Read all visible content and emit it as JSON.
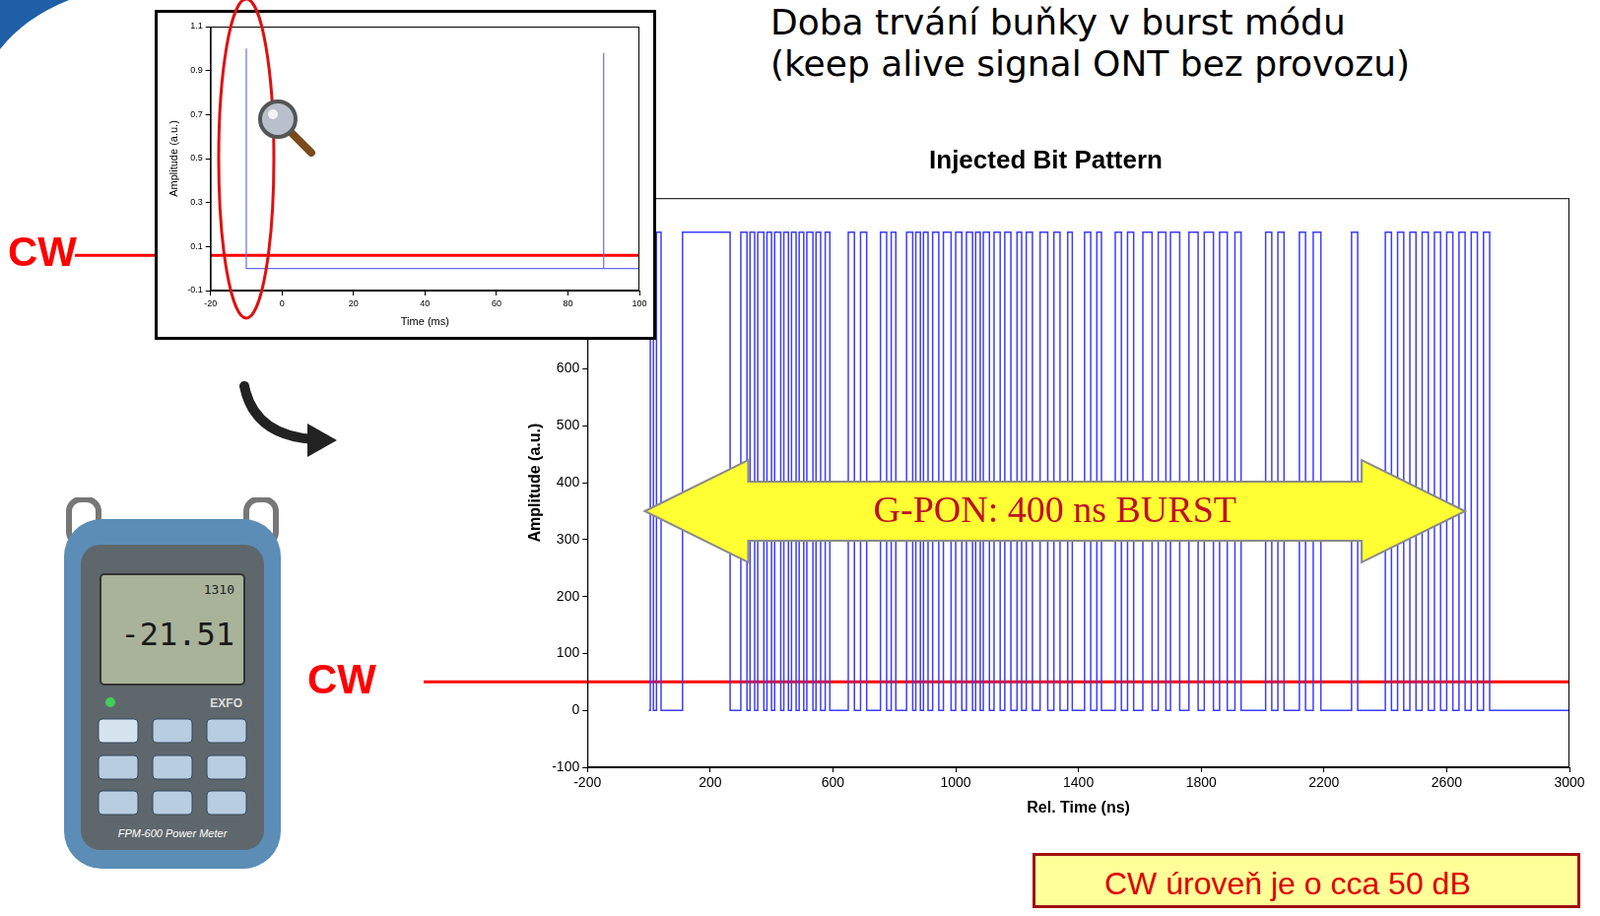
{
  "header": {
    "lines": [
      "Doba trvání buňky v burst módu",
      "(keep alive signal ONT bez provozu)"
    ]
  },
  "chart_data": [
    {
      "type": "line",
      "x_label": "Time (ms)",
      "y_label": "Amplitude (a.u.)",
      "x": [
        -10,
        -10,
        90,
        90,
        90,
        100
      ],
      "values": [
        1.0,
        0,
        0,
        0.98,
        0,
        0
      ],
      "color": "#6a6af0",
      "xlim": [
        -20,
        100
      ],
      "xticks": [
        -20,
        0,
        20,
        40,
        60,
        80,
        100
      ],
      "ylim": [
        -0.1,
        1.1
      ],
      "yticks": [
        -0.1,
        0.1,
        0.3,
        0.5,
        0.7,
        0.9,
        1.1
      ],
      "grid": false,
      "cw_line": {
        "label": "CW",
        "value": 0.06,
        "color": "#ff0000"
      }
    },
    {
      "type": "line",
      "title": "Injected Bit Pattern",
      "x_label": "Rel. Time (ns)",
      "y_label": "Amplitude (a.u.)",
      "x": [
        0,
        5,
        15,
        25,
        40,
        110,
        265,
        300,
        320,
        330,
        345,
        355,
        375,
        385,
        400,
        410,
        430,
        440,
        455,
        465,
        480,
        490,
        505,
        515,
        535,
        545,
        560,
        575,
        590,
        650,
        670,
        690,
        710,
        755,
        775,
        790,
        805,
        840,
        860,
        870,
        885,
        895,
        910,
        925,
        945,
        960,
        985,
        1000,
        1020,
        1035,
        1055,
        1065,
        1080,
        1090,
        1110,
        1125,
        1145,
        1160,
        1180,
        1200,
        1215,
        1230,
        1250,
        1275,
        1300,
        1320,
        1340,
        1365,
        1380,
        1420,
        1440,
        1460,
        1475,
        1520,
        1540,
        1560,
        1580,
        1610,
        1640,
        1660,
        1685,
        1700,
        1730,
        1760,
        1790,
        1810,
        1840,
        1860,
        1885,
        1910,
        1930,
        2010,
        2030,
        2050,
        2070,
        2120,
        2140,
        2165,
        2190,
        2290,
        2310,
        2400,
        2420,
        2440,
        2460,
        2480,
        2500,
        2520,
        2540,
        2560,
        2580,
        2600,
        2620,
        2640,
        2660,
        2680,
        2700,
        2720,
        2740,
        3000
      ],
      "values": [
        0,
        840,
        0,
        840,
        0,
        840,
        0,
        840,
        0,
        840,
        0,
        840,
        0,
        840,
        0,
        840,
        0,
        840,
        0,
        840,
        0,
        840,
        0,
        840,
        0,
        840,
        0,
        840,
        0,
        840,
        0,
        840,
        0,
        840,
        0,
        840,
        0,
        840,
        0,
        840,
        0,
        840,
        0,
        840,
        0,
        840,
        0,
        840,
        0,
        840,
        0,
        840,
        0,
        840,
        0,
        840,
        0,
        840,
        0,
        840,
        0,
        840,
        0,
        840,
        0,
        840,
        0,
        840,
        0,
        840,
        0,
        840,
        0,
        840,
        0,
        840,
        0,
        840,
        0,
        840,
        0,
        840,
        0,
        840,
        0,
        840,
        0,
        840,
        0,
        840,
        0,
        840,
        0,
        840,
        0,
        840,
        0,
        840,
        0,
        840,
        0,
        840,
        0,
        840,
        0,
        840,
        0,
        840,
        0,
        840,
        0,
        840,
        0,
        840,
        0,
        840,
        0,
        840,
        0,
        0
      ],
      "color": "#3d3dff",
      "line_style": "steps",
      "xlim": [
        -200,
        3000
      ],
      "xticks": [
        -200,
        200,
        600,
        1000,
        1400,
        1800,
        2200,
        2600,
        3000
      ],
      "ylim": [
        -100,
        900
      ],
      "yticks": [
        -100,
        0,
        100,
        200,
        300,
        400,
        500,
        600
      ],
      "grid": false,
      "cw_line": {
        "label": "CW",
        "value": 50,
        "color": "#ff0000"
      },
      "annotation": {
        "text": "G-PON: 400 ns BURST",
        "x": [
          -13,
          2660
        ],
        "y": 350
      },
      "note": "CW úroveň je o cca 50 dB"
    }
  ],
  "meter": {
    "wavelength": "1310",
    "reading": "-21.51",
    "brand": "EXFO",
    "model": "FPM-600 Power Meter"
  }
}
